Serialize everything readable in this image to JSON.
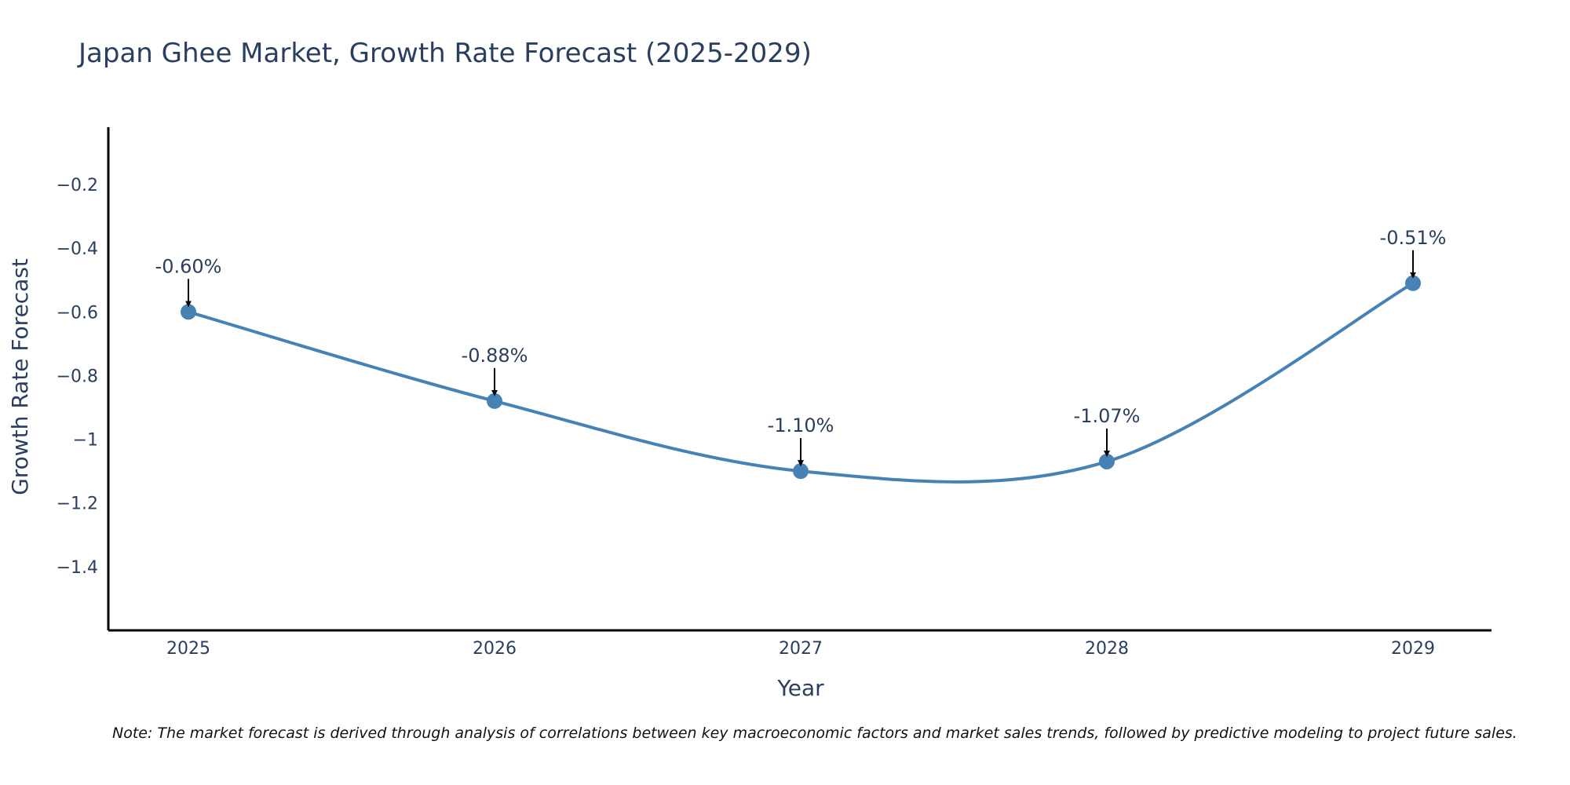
{
  "chart_data": {
    "type": "line",
    "title": "Japan Ghee Market, Growth Rate Forecast (2025-2029)",
    "xlabel": "Year",
    "ylabel": "Growth Rate Forecast",
    "categories": [
      "2025",
      "2026",
      "2027",
      "2028",
      "2029"
    ],
    "series": [
      {
        "name": "Growth Rate Forecast",
        "values": [
          -0.6,
          -0.88,
          -1.1,
          -1.07,
          -0.51
        ],
        "labels": [
          "-0.60%",
          "-0.88%",
          "-1.10%",
          "-1.07%",
          "-0.51%"
        ]
      }
    ],
    "ylim": [
      -1.6,
      -0.02
    ],
    "yticks": [
      -0.2,
      -0.4,
      -0.6,
      -0.8,
      -1.0,
      -1.2,
      -1.4
    ],
    "ytick_labels": [
      "−0.2",
      "−0.4",
      "−0.6",
      "−0.8",
      "−1",
      "−1.2",
      "−1.4"
    ],
    "grid": false,
    "line_shape": "spline",
    "colors": {
      "line": "#4682B4",
      "marker": "#4682B4",
      "axis": "#000000",
      "text": "#2a3f5f",
      "arrow": "#000000"
    },
    "note": "Note: The market forecast is derived through analysis of correlations between key macroeconomic factors and market sales trends, followed by predictive modeling to project future sales."
  }
}
